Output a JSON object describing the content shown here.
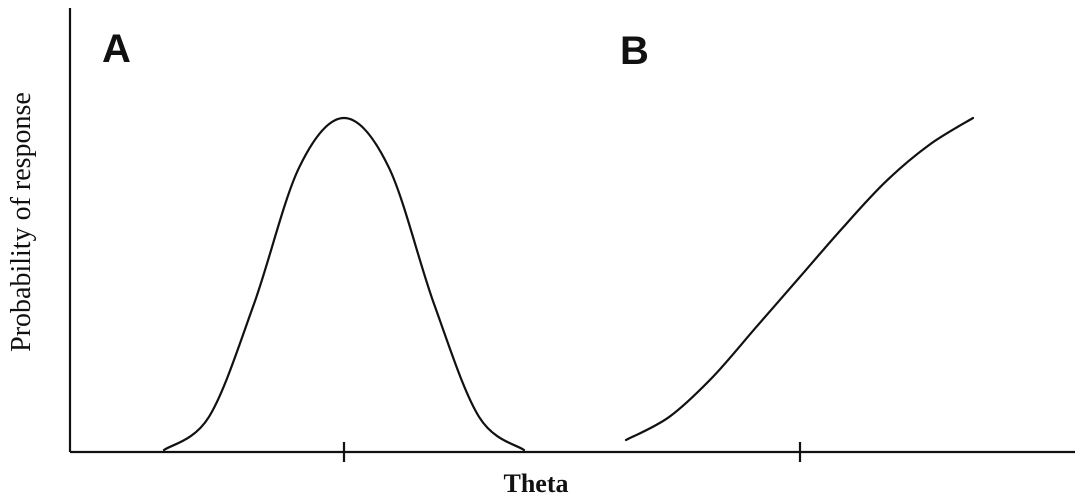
{
  "chart_data": {
    "type": "line",
    "xlabel": "Theta",
    "ylabel": "Probability of response",
    "grid": false,
    "legend": "none",
    "series": [
      {
        "panel": "A",
        "shape": "unimodal (ideal point)",
        "x": [
          -2.0,
          -1.5,
          -1.0,
          -0.5,
          0.0,
          0.5,
          1.0,
          1.5,
          2.0
        ],
        "y": [
          0.0,
          0.1,
          0.44,
          0.85,
          1.0,
          0.85,
          0.44,
          0.1,
          0.0
        ]
      },
      {
        "panel": "B",
        "shape": "monotone increasing (dominance)",
        "x": [
          -2.0,
          -1.5,
          -1.0,
          -0.5,
          0.0,
          0.5,
          1.0,
          1.5,
          2.0
        ],
        "y": [
          0.03,
          0.1,
          0.22,
          0.37,
          0.52,
          0.67,
          0.81,
          0.92,
          1.0
        ]
      }
    ],
    "color": "#111111"
  }
}
